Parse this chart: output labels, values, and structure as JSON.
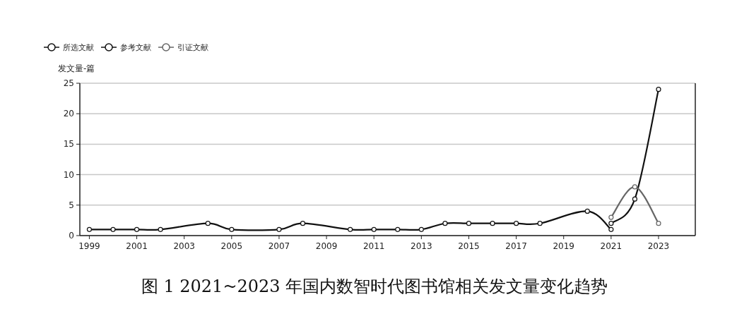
{
  "chart_data": {
    "type": "line",
    "title": "图 1  2021~2023 年国内数智时代图书馆相关发文量变化趋势",
    "ylabel": "发文量-篇",
    "series": [
      {
        "name": "所选文献",
        "color": "#111111",
        "x": [
          1999,
          2000,
          2001,
          2002,
          2004,
          2005,
          2007,
          2008,
          2010,
          2011,
          2012,
          2013,
          2014,
          2015,
          2016,
          2017,
          2018,
          2020,
          2021
        ],
        "values": [
          1,
          1,
          1,
          1,
          2,
          1,
          1,
          2,
          1,
          1,
          1,
          1,
          2,
          2,
          2,
          2,
          2,
          4,
          1
        ]
      },
      {
        "name": "参考文献",
        "color": "#111111",
        "x": [
          2021,
          2022,
          2023
        ],
        "values": [
          2,
          6,
          24
        ]
      },
      {
        "name": "引证文献",
        "color": "#666666",
        "x": [
          2021,
          2022,
          2023
        ],
        "values": [
          3,
          8,
          2
        ]
      }
    ],
    "xlim": [
      1998.6,
      2024.55
    ],
    "xticks": [
      1999,
      2001,
      2003,
      2005,
      2007,
      2009,
      2011,
      2013,
      2015,
      2017,
      2019,
      2021,
      2023
    ],
    "ylim": [
      0,
      25
    ],
    "yticks": [
      0,
      5,
      10,
      15,
      20,
      25
    ],
    "grid": "y",
    "legend": "top left",
    "marker": "circle",
    "line_style": "solid"
  }
}
